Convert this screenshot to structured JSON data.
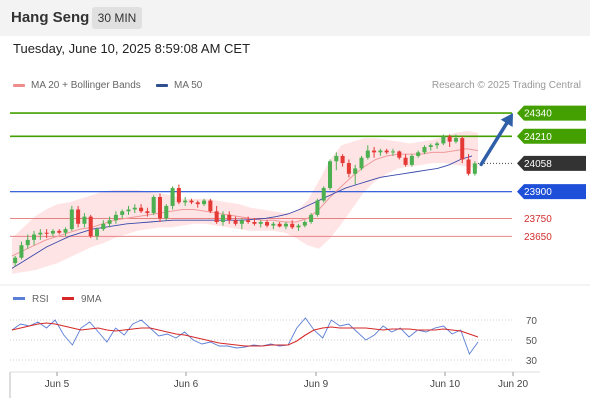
{
  "header": {
    "title": "Hang Seng",
    "timeframe": "30 MIN",
    "datetime": "Tuesday, June 10, 2025 8:59:08 AM CET"
  },
  "legend": {
    "item1": "MA 20 + Bollinger Bands",
    "item2": "MA 50",
    "credit": "Research © 2025 Trading Central"
  },
  "colors": {
    "up": "#4caf50",
    "down": "#e53935",
    "bands": "#ffcdd2",
    "ma20": "#ef9a9a",
    "ma50": "#3949ab",
    "resistance": "#43a000",
    "support_strong": "#1e4fd8",
    "support": "#e57373",
    "target_arrow": "#2f5fa8",
    "rsi": "#5b7fd6",
    "rsi_ma": "#d62828"
  },
  "chart_data": [
    {
      "type": "candlestick",
      "title": "Hang Seng 30 MIN",
      "x_tick_labels": [
        "Jun 5",
        "Jun 6",
        "Jun 9",
        "Jun 10",
        "Jun 20"
      ],
      "ylim": [
        23450,
        24430
      ],
      "last_price": 24058,
      "current_price_label": "24058",
      "levels": [
        {
          "value": 24340,
          "label": "24340",
          "kind": "resistance"
        },
        {
          "value": 24210,
          "label": "24210",
          "kind": "resistance"
        },
        {
          "value": 23900,
          "label": "23900",
          "kind": "pivot"
        },
        {
          "value": 23750,
          "label": "23750",
          "kind": "support"
        },
        {
          "value": 23650,
          "label": "23650",
          "kind": "support"
        }
      ],
      "target": 24340,
      "ohlc": [
        {
          "o": 23500,
          "h": 23540,
          "l": 23480,
          "c": 23530
        },
        {
          "o": 23530,
          "h": 23620,
          "l": 23520,
          "c": 23600
        },
        {
          "o": 23600,
          "h": 23660,
          "l": 23580,
          "c": 23630
        },
        {
          "o": 23630,
          "h": 23680,
          "l": 23600,
          "c": 23660
        },
        {
          "o": 23660,
          "h": 23690,
          "l": 23630,
          "c": 23670
        },
        {
          "o": 23670,
          "h": 23690,
          "l": 23640,
          "c": 23665
        },
        {
          "o": 23665,
          "h": 23690,
          "l": 23650,
          "c": 23680
        },
        {
          "o": 23680,
          "h": 23690,
          "l": 23660,
          "c": 23670
        },
        {
          "o": 23670,
          "h": 23700,
          "l": 23650,
          "c": 23690
        },
        {
          "o": 23690,
          "h": 23820,
          "l": 23680,
          "c": 23800
        },
        {
          "o": 23800,
          "h": 23820,
          "l": 23700,
          "c": 23720
        },
        {
          "o": 23720,
          "h": 23780,
          "l": 23700,
          "c": 23760
        },
        {
          "o": 23760,
          "h": 23770,
          "l": 23640,
          "c": 23650
        },
        {
          "o": 23650,
          "h": 23700,
          "l": 23630,
          "c": 23690
        },
        {
          "o": 23690,
          "h": 23740,
          "l": 23680,
          "c": 23720
        },
        {
          "o": 23720,
          "h": 23760,
          "l": 23700,
          "c": 23740
        },
        {
          "o": 23740,
          "h": 23790,
          "l": 23720,
          "c": 23770
        },
        {
          "o": 23770,
          "h": 23800,
          "l": 23750,
          "c": 23790
        },
        {
          "o": 23790,
          "h": 23820,
          "l": 23770,
          "c": 23800
        },
        {
          "o": 23800,
          "h": 23830,
          "l": 23780,
          "c": 23810
        },
        {
          "o": 23810,
          "h": 23830,
          "l": 23780,
          "c": 23790
        },
        {
          "o": 23790,
          "h": 23810,
          "l": 23760,
          "c": 23780
        },
        {
          "o": 23780,
          "h": 23880,
          "l": 23770,
          "c": 23870
        },
        {
          "o": 23870,
          "h": 23890,
          "l": 23730,
          "c": 23750
        },
        {
          "o": 23750,
          "h": 23830,
          "l": 23740,
          "c": 23820
        },
        {
          "o": 23820,
          "h": 23930,
          "l": 23800,
          "c": 23920
        },
        {
          "o": 23920,
          "h": 23940,
          "l": 23830,
          "c": 23840
        },
        {
          "o": 23840,
          "h": 23870,
          "l": 23820,
          "c": 23850
        },
        {
          "o": 23850,
          "h": 23860,
          "l": 23830,
          "c": 23840
        },
        {
          "o": 23840,
          "h": 23850,
          "l": 23810,
          "c": 23830
        },
        {
          "o": 23830,
          "h": 23860,
          "l": 23820,
          "c": 23850
        },
        {
          "o": 23850,
          "h": 23860,
          "l": 23780,
          "c": 23790
        },
        {
          "o": 23790,
          "h": 23820,
          "l": 23720,
          "c": 23730
        },
        {
          "o": 23730,
          "h": 23790,
          "l": 23710,
          "c": 23770
        },
        {
          "o": 23770,
          "h": 23790,
          "l": 23720,
          "c": 23740
        },
        {
          "o": 23740,
          "h": 23760,
          "l": 23710,
          "c": 23720
        },
        {
          "o": 23720,
          "h": 23750,
          "l": 23690,
          "c": 23740
        },
        {
          "o": 23740,
          "h": 23760,
          "l": 23720,
          "c": 23730
        },
        {
          "o": 23730,
          "h": 23750,
          "l": 23710,
          "c": 23720
        },
        {
          "o": 23720,
          "h": 23740,
          "l": 23700,
          "c": 23730
        },
        {
          "o": 23730,
          "h": 23740,
          "l": 23700,
          "c": 23710
        },
        {
          "o": 23710,
          "h": 23730,
          "l": 23690,
          "c": 23720
        },
        {
          "o": 23720,
          "h": 23730,
          "l": 23700,
          "c": 23705
        },
        {
          "o": 23705,
          "h": 23730,
          "l": 23690,
          "c": 23720
        },
        {
          "o": 23720,
          "h": 23740,
          "l": 23690,
          "c": 23700
        },
        {
          "o": 23700,
          "h": 23720,
          "l": 23680,
          "c": 23710
        },
        {
          "o": 23710,
          "h": 23740,
          "l": 23700,
          "c": 23730
        },
        {
          "o": 23730,
          "h": 23780,
          "l": 23720,
          "c": 23770
        },
        {
          "o": 23770,
          "h": 23860,
          "l": 23760,
          "c": 23850
        },
        {
          "o": 23850,
          "h": 23930,
          "l": 23840,
          "c": 23920
        },
        {
          "o": 23920,
          "h": 24080,
          "l": 23910,
          "c": 24070
        },
        {
          "o": 24070,
          "h": 24120,
          "l": 24020,
          "c": 24100
        },
        {
          "o": 24100,
          "h": 24110,
          "l": 24040,
          "c": 24060
        },
        {
          "o": 24060,
          "h": 24080,
          "l": 23980,
          "c": 24000
        },
        {
          "o": 24000,
          "h": 24050,
          "l": 23940,
          "c": 24030
        },
        {
          "o": 24030,
          "h": 24100,
          "l": 24020,
          "c": 24090
        },
        {
          "o": 24090,
          "h": 24160,
          "l": 24080,
          "c": 24130
        },
        {
          "o": 24130,
          "h": 24150,
          "l": 24090,
          "c": 24120
        },
        {
          "o": 24120,
          "h": 24140,
          "l": 24100,
          "c": 24130
        },
        {
          "o": 24130,
          "h": 24140,
          "l": 24110,
          "c": 24120
        },
        {
          "o": 24120,
          "h": 24140,
          "l": 24100,
          "c": 24125
        },
        {
          "o": 24125,
          "h": 24130,
          "l": 24080,
          "c": 24090
        },
        {
          "o": 24090,
          "h": 24110,
          "l": 24040,
          "c": 24050
        },
        {
          "o": 24050,
          "h": 24110,
          "l": 24040,
          "c": 24100
        },
        {
          "o": 24100,
          "h": 24130,
          "l": 24090,
          "c": 24120
        },
        {
          "o": 24120,
          "h": 24160,
          "l": 24110,
          "c": 24150
        },
        {
          "o": 24150,
          "h": 24170,
          "l": 24130,
          "c": 24160
        },
        {
          "o": 24160,
          "h": 24180,
          "l": 24140,
          "c": 24170
        },
        {
          "o": 24170,
          "h": 24220,
          "l": 24160,
          "c": 24210
        },
        {
          "o": 24210,
          "h": 24220,
          "l": 24150,
          "c": 24180
        },
        {
          "o": 24180,
          "h": 24220,
          "l": 24170,
          "c": 24200
        },
        {
          "o": 24200,
          "h": 24210,
          "l": 24060,
          "c": 24080
        },
        {
          "o": 24080,
          "h": 24110,
          "l": 23990,
          "c": 24000
        },
        {
          "o": 24000,
          "h": 24070,
          "l": 23990,
          "c": 24058
        }
      ],
      "bollinger": {
        "ma20": [
          23540,
          23570,
          23600,
          23630,
          23650,
          23670,
          23690,
          23700,
          23720,
          23740,
          23750,
          23760,
          23770,
          23780,
          23790,
          23800,
          23800,
          23790,
          23780,
          23770,
          23760,
          23750,
          23740,
          23740,
          23730,
          23730,
          23750,
          23800,
          23870,
          23930,
          23990,
          24040,
          24080,
          24100,
          24110,
          24110,
          24110,
          24120,
          24120,
          24130,
          24140,
          24130
        ],
        "upper": [
          23640,
          23700,
          23760,
          23800,
          23830,
          23840,
          23860,
          23880,
          23900,
          23910,
          23910,
          23910,
          23900,
          23890,
          23880,
          23860,
          23860,
          23860,
          23850,
          23840,
          23830,
          23810,
          23800,
          23790,
          23780,
          23790,
          23850,
          23960,
          24080,
          24160,
          24180,
          24200,
          24200,
          24190,
          24180,
          24170,
          24180,
          24190,
          24210,
          24230,
          24240,
          24230
        ],
        "lower": [
          23440,
          23450,
          23460,
          23480,
          23500,
          23530,
          23560,
          23590,
          23610,
          23640,
          23660,
          23680,
          23690,
          23700,
          23700,
          23710,
          23720,
          23720,
          23710,
          23700,
          23690,
          23680,
          23680,
          23680,
          23670,
          23640,
          23600,
          23580,
          23640,
          23720,
          23810,
          23900,
          23960,
          24000,
          24030,
          24040,
          24050,
          24060,
          24060,
          24050,
          24040,
          24030
        ]
      },
      "ma50": [
        23470,
        23510,
        23550,
        23590,
        23620,
        23650,
        23670,
        23690,
        23700,
        23710,
        23720,
        23725,
        23730,
        23735,
        23740,
        23740,
        23740,
        23740,
        23740,
        23740,
        23740,
        23745,
        23750,
        23760,
        23775,
        23800,
        23830,
        23860,
        23890,
        23920,
        23940,
        23960,
        23980,
        23990,
        24000,
        24010,
        24020,
        24030,
        24050,
        24080,
        24100
      ],
      "xlabel": "",
      "ylabel": ""
    },
    {
      "type": "line",
      "title": "RSI",
      "series": [
        {
          "name": "RSI",
          "values": [
            60,
            66,
            64,
            68,
            62,
            70,
            55,
            45,
            62,
            68,
            58,
            48,
            62,
            55,
            66,
            70,
            62,
            54,
            56,
            52,
            58,
            50,
            46,
            48,
            44,
            44,
            42,
            43,
            45,
            44,
            46,
            44,
            45,
            62,
            72,
            60,
            52,
            70,
            64,
            66,
            58,
            50,
            55,
            64,
            58,
            62,
            53,
            60,
            58,
            62,
            64,
            56,
            60,
            36,
            48
          ]
        },
        {
          "name": "9MA",
          "values": [
            60,
            62,
            64,
            66,
            67,
            66,
            64,
            62,
            60,
            61,
            62,
            60,
            59,
            60,
            61,
            62,
            62,
            60,
            58,
            56,
            55,
            53,
            51,
            49,
            47,
            46,
            45,
            44,
            44,
            44,
            45,
            45,
            45,
            49,
            55,
            60,
            62,
            63,
            62,
            62,
            62,
            62,
            61,
            60,
            61,
            61,
            61,
            60,
            60,
            60,
            61,
            60,
            59,
            56,
            53
          ]
        }
      ],
      "y_tick_labels": [
        "70",
        "50",
        "30"
      ],
      "ylim": [
        20,
        80
      ]
    }
  ]
}
